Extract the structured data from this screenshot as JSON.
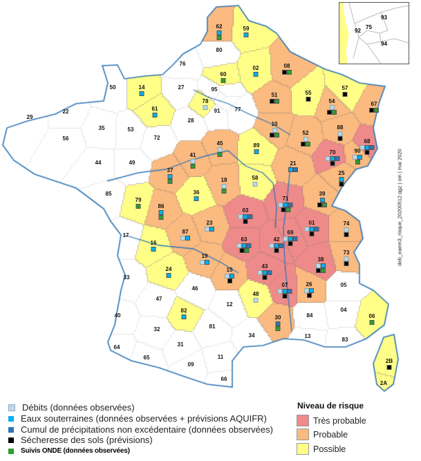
{
  "colors": {
    "tres_probable": "#EF8A8A",
    "probable": "#FBBA80",
    "possible": "#FFFF88",
    "none": "#FFFFFF",
    "debits": "#BDD7EE",
    "eaux": "#00B0F0",
    "cumul": "#2E75B6",
    "secheresse": "#000000",
    "onde": "#2E9E2E",
    "coast": "#2E75B6"
  },
  "departments": [
    {
      "code": "62",
      "risk": "probable",
      "indicators": [
        [
          "eaux"
        ],
        [
          "onde"
        ]
      ]
    },
    {
      "code": "59",
      "risk": "possible",
      "indicators": [
        [
          "eaux"
        ]
      ]
    },
    {
      "code": "80",
      "risk": "none",
      "indicators": []
    },
    {
      "code": "02",
      "risk": "possible",
      "indicators": [
        [
          "eaux"
        ]
      ]
    },
    {
      "code": "60",
      "risk": "possible",
      "indicators": [
        [
          "onde"
        ]
      ]
    },
    {
      "code": "95",
      "risk": "none",
      "indicators": []
    },
    {
      "code": "78",
      "risk": "possible",
      "indicators": [
        [
          "debits"
        ]
      ]
    },
    {
      "code": "91",
      "risk": "none",
      "indicators": []
    },
    {
      "code": "77",
      "risk": "none",
      "indicators": []
    },
    {
      "code": "08",
      "risk": "probable",
      "indicators": [
        [
          "secheresse",
          "onde"
        ]
      ]
    },
    {
      "code": "51",
      "risk": "probable",
      "indicators": [
        [
          "secheresse",
          "onde"
        ]
      ]
    },
    {
      "code": "55",
      "risk": "possible",
      "indicators": [
        [
          "secheresse"
        ]
      ]
    },
    {
      "code": "57",
      "risk": "possible",
      "indicators": [
        [
          "secheresse"
        ]
      ]
    },
    {
      "code": "54",
      "risk": "probable",
      "indicators": [
        [
          "debits"
        ],
        [
          "secheresse",
          "onde"
        ]
      ]
    },
    {
      "code": "67",
      "risk": "probable",
      "indicators": [
        [
          "secheresse",
          "onde"
        ]
      ]
    },
    {
      "code": "10",
      "risk": "probable",
      "indicators": [
        [
          "debits"
        ],
        [
          "secheresse",
          "onde"
        ]
      ]
    },
    {
      "code": "52",
      "risk": "probable",
      "indicators": [
        [
          "debits"
        ],
        [
          "secheresse",
          "onde"
        ]
      ]
    },
    {
      "code": "88",
      "risk": "probable",
      "indicators": [
        [
          "debits"
        ],
        [
          "secheresse"
        ]
      ]
    },
    {
      "code": "45",
      "risk": "probable",
      "indicators": [
        [
          "debits"
        ],
        [
          "onde"
        ]
      ]
    },
    {
      "code": "89",
      "risk": "possible",
      "indicators": [
        [
          "eaux"
        ]
      ]
    },
    {
      "code": "68",
      "risk": "tres_probable",
      "indicators": [
        [
          "debits",
          "eaux",
          "cumul"
        ],
        [
          "secheresse"
        ]
      ]
    },
    {
      "code": "70",
      "risk": "tres_probable",
      "indicators": [
        [
          "debits",
          "eaux",
          "cumul"
        ],
        [
          "secheresse"
        ]
      ]
    },
    {
      "code": "90",
      "risk": "probable",
      "indicators": [
        [
          "debits",
          "eaux"
        ],
        [
          "onde"
        ]
      ]
    },
    {
      "code": "21",
      "risk": "probable",
      "indicators": [
        [
          "eaux",
          "cumul"
        ]
      ]
    },
    {
      "code": "25",
      "risk": "probable",
      "indicators": [
        [
          "eaux"
        ],
        [
          "secheresse"
        ]
      ]
    },
    {
      "code": "18",
      "risk": "probable",
      "indicators": [
        [
          "debits"
        ],
        [
          "onde"
        ]
      ]
    },
    {
      "code": "58",
      "risk": "possible",
      "indicators": [
        [
          "debits"
        ]
      ]
    },
    {
      "code": "39",
      "risk": "probable",
      "indicators": [
        [
          "eaux"
        ],
        [
          "secheresse",
          "onde"
        ]
      ]
    },
    {
      "code": "71",
      "risk": "tres_probable",
      "indicators": [
        [
          "debits",
          "eaux",
          "cumul"
        ],
        [
          "secheresse",
          "onde"
        ]
      ]
    },
    {
      "code": "03",
      "risk": "tres_probable",
      "indicators": [
        [
          "debits",
          "eaux",
          "cumul"
        ],
        [
          "secheresse"
        ]
      ]
    },
    {
      "code": "01",
      "risk": "tres_probable",
      "indicators": [
        [
          "debits",
          "eaux",
          "cumul"
        ],
        [
          "secheresse"
        ]
      ]
    },
    {
      "code": "74",
      "risk": "probable",
      "indicators": [
        [
          "debits"
        ],
        [
          "secheresse"
        ]
      ]
    },
    {
      "code": "63",
      "risk": "tres_probable",
      "indicators": [
        [
          "debits",
          "eaux",
          "cumul"
        ],
        [
          "secheresse",
          "onde"
        ]
      ]
    },
    {
      "code": "42",
      "risk": "tres_probable",
      "indicators": [
        [
          "debits",
          "eaux",
          "cumul"
        ],
        [
          "secheresse"
        ]
      ]
    },
    {
      "code": "69",
      "risk": "tres_probable",
      "indicators": [
        [
          "debits",
          "eaux",
          "cumul"
        ],
        [
          "secheresse"
        ]
      ]
    },
    {
      "code": "73",
      "risk": "probable",
      "indicators": [
        [
          "debits"
        ],
        [
          "secheresse"
        ]
      ]
    },
    {
      "code": "38",
      "risk": "tres_probable",
      "indicators": [
        [
          "debits",
          "eaux"
        ],
        [
          "secheresse",
          "onde"
        ]
      ]
    },
    {
      "code": "43",
      "risk": "tres_probable",
      "indicators": [
        [
          "debits",
          "eaux",
          "cumul"
        ],
        [
          "secheresse"
        ]
      ]
    },
    {
      "code": "15",
      "risk": "probable",
      "indicators": [
        [
          "debits",
          "eaux"
        ],
        [
          "secheresse"
        ]
      ]
    },
    {
      "code": "72",
      "risk": "none",
      "indicators": []
    },
    {
      "code": "41",
      "risk": "probable",
      "indicators": [
        [
          "debits"
        ],
        [
          "onde"
        ]
      ]
    },
    {
      "code": "49",
      "risk": "none",
      "indicators": []
    },
    {
      "code": "37",
      "risk": "probable",
      "indicators": [
        [
          "eaux"
        ],
        [
          "onde"
        ]
      ]
    },
    {
      "code": "85",
      "risk": "none",
      "indicators": []
    },
    {
      "code": "36",
      "risk": "possible",
      "indicators": [
        [
          "eaux"
        ]
      ]
    },
    {
      "code": "79",
      "risk": "possible",
      "indicators": [
        [
          "onde"
        ]
      ]
    },
    {
      "code": "86",
      "risk": "probable",
      "indicators": [
        [
          "eaux"
        ],
        [
          "onde"
        ]
      ]
    },
    {
      "code": "17",
      "risk": "none",
      "indicators": []
    },
    {
      "code": "87",
      "risk": "probable",
      "indicators": [
        [
          "debits",
          "eaux"
        ]
      ]
    },
    {
      "code": "23",
      "risk": "probable",
      "indicators": [
        [
          "debits",
          "eaux"
        ]
      ]
    },
    {
      "code": "16",
      "risk": "possible",
      "indicators": [
        [
          "eaux"
        ]
      ]
    },
    {
      "code": "19",
      "risk": "probable",
      "indicators": [
        [
          "debits",
          "eaux"
        ]
      ]
    },
    {
      "code": "24",
      "risk": "possible",
      "indicators": [
        [
          "eaux"
        ]
      ]
    },
    {
      "code": "07",
      "risk": "tres_probable",
      "indicators": [
        [
          "debits",
          "eaux",
          "cumul"
        ],
        [
          "secheresse"
        ]
      ]
    },
    {
      "code": "26",
      "risk": "probable",
      "indicators": [
        [
          "debits",
          "eaux"
        ],
        [
          "secheresse"
        ]
      ]
    },
    {
      "code": "05",
      "risk": "none",
      "indicators": []
    },
    {
      "code": "48",
      "risk": "possible",
      "indicators": [
        [
          "debits"
        ]
      ]
    },
    {
      "code": "12",
      "risk": "none",
      "indicators": []
    },
    {
      "code": "04",
      "risk": "none",
      "indicators": []
    },
    {
      "code": "84",
      "risk": "none",
      "indicators": []
    },
    {
      "code": "06",
      "risk": "possible",
      "indicators": [
        [
          "onde"
        ]
      ]
    },
    {
      "code": "30",
      "risk": "probable",
      "indicators": [
        [
          "cumul"
        ],
        [
          "onde"
        ]
      ]
    },
    {
      "code": "81",
      "risk": "none",
      "indicators": []
    },
    {
      "code": "34",
      "risk": "none",
      "indicators": []
    },
    {
      "code": "13",
      "risk": "none",
      "indicators": []
    },
    {
      "code": "83",
      "risk": "none",
      "indicators": []
    },
    {
      "code": "2B",
      "risk": "possible",
      "indicators": [
        [
          "secheresse"
        ]
      ]
    },
    {
      "code": "2A",
      "risk": "possible",
      "indicators": []
    },
    {
      "code": "11",
      "risk": "none",
      "indicators": []
    },
    {
      "code": "66",
      "risk": "none",
      "indicators": []
    },
    {
      "code": "33",
      "risk": "none",
      "indicators": []
    },
    {
      "code": "47",
      "risk": "none",
      "indicators": []
    },
    {
      "code": "46",
      "risk": "none",
      "indicators": []
    },
    {
      "code": "40",
      "risk": "none",
      "indicators": []
    },
    {
      "code": "82",
      "risk": "possible",
      "indicators": [
        [
          "eaux"
        ]
      ]
    },
    {
      "code": "32",
      "risk": "none",
      "indicators": []
    },
    {
      "code": "64",
      "risk": "none",
      "indicators": []
    },
    {
      "code": "31",
      "risk": "none",
      "indicators": []
    },
    {
      "code": "65",
      "risk": "none",
      "indicators": []
    },
    {
      "code": "09",
      "risk": "none",
      "indicators": []
    },
    {
      "code": "76",
      "risk": "none",
      "indicators": []
    },
    {
      "code": "50",
      "risk": "none",
      "indicators": []
    },
    {
      "code": "14",
      "risk": "possible",
      "indicators": [
        [
          "eaux"
        ]
      ]
    },
    {
      "code": "27",
      "risk": "none",
      "indicators": []
    },
    {
      "code": "61",
      "risk": "possible",
      "indicators": [
        [
          "eaux"
        ]
      ]
    },
    {
      "code": "29",
      "risk": "none",
      "indicators": []
    },
    {
      "code": "22",
      "risk": "none",
      "indicators": []
    },
    {
      "code": "35",
      "risk": "none",
      "indicators": []
    },
    {
      "code": "53",
      "risk": "none",
      "indicators": []
    },
    {
      "code": "56",
      "risk": "none",
      "indicators": []
    },
    {
      "code": "44",
      "risk": "none",
      "indicators": []
    },
    {
      "code": "28",
      "risk": "none",
      "indicators": []
    }
  ],
  "inset": {
    "labels": [
      "93",
      "92",
      "75",
      "94"
    ]
  },
  "credit": "deb_eaem3_risque_20200512.qgz | om | mai 2020",
  "legend": {
    "indicators": [
      {
        "key": "debits",
        "label": "Débits (données observées)"
      },
      {
        "key": "eaux",
        "label": "Eaux souterraines (données observées + prévisions AQUIFR)"
      },
      {
        "key": "cumul",
        "label": "Cumul de précipitations non excédentaire (données observées)"
      },
      {
        "key": "secheresse",
        "label": "Sécheresse des sols (prévisions)"
      },
      {
        "key": "onde",
        "label": "Suivis ONDE (données observées)"
      }
    ],
    "risk_title": "Niveau de risque",
    "risk_levels": [
      {
        "key": "tres_probable",
        "label": "Très probable"
      },
      {
        "key": "probable",
        "label": "Probable"
      },
      {
        "key": "possible",
        "label": "Possible"
      }
    ]
  }
}
